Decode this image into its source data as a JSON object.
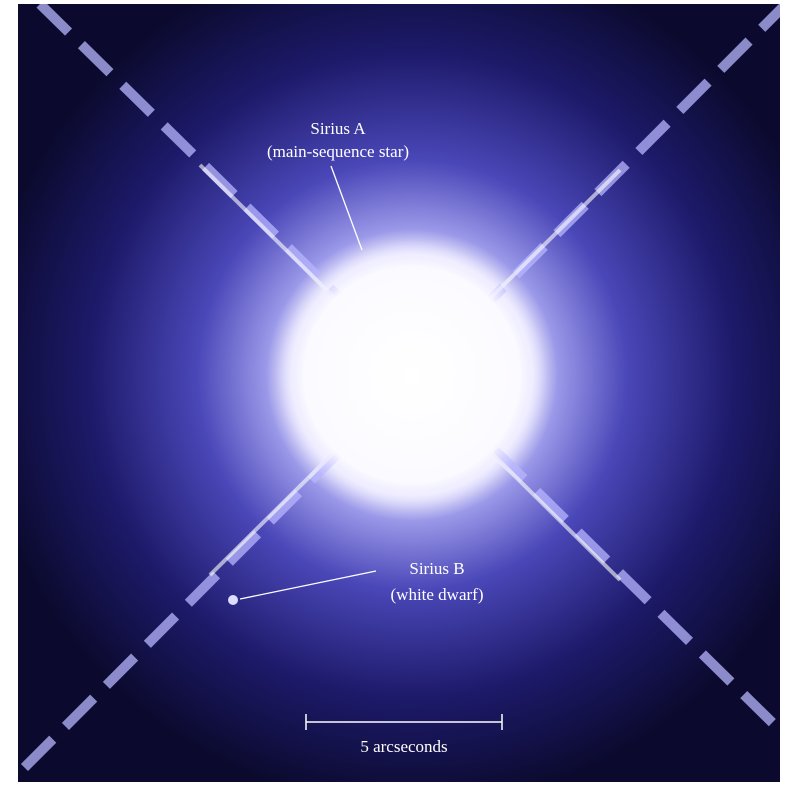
{
  "labels": {
    "sirius_a": {
      "name": "Sirius A",
      "description": "(main-sequence star)"
    },
    "sirius_b": {
      "name": "Sirius B",
      "description": "(white dwarf)"
    },
    "scale_bar": {
      "label": "5 arcseconds"
    }
  }
}
